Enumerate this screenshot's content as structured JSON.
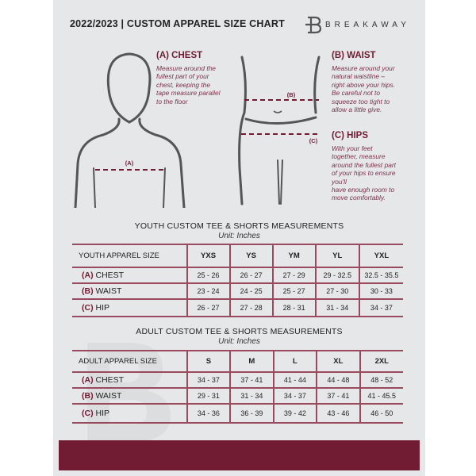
{
  "header": {
    "title": "2022/2023  |  CUSTOM APPAREL SIZE CHART",
    "brand": "BREAKAWAY"
  },
  "colors": {
    "accent": "#721c33",
    "background": "#e6e7e9"
  },
  "measures": {
    "chest": {
      "title": "(A) CHEST",
      "desc": [
        "Measure around the",
        "fullest part of your",
        "chest, keeping the",
        "tape measure parallel",
        "to the floor"
      ],
      "marker": "(A)"
    },
    "waist": {
      "title": "(B) WAIST",
      "desc": [
        "Measure around your",
        "natural waistline –",
        "right above your hips.",
        "Be careful not to",
        "squeeze too tight to",
        "allow a little give."
      ],
      "marker": "(B)"
    },
    "hips": {
      "title": "(C) HIPS",
      "desc": [
        "With your feet",
        "together, measure",
        "around the fullest part",
        "of your hips to ensure",
        "you'll",
        "have enough room to",
        "move comfortably."
      ],
      "marker": "(C)"
    }
  },
  "youth": {
    "title": "YOUTH CUSTOM TEE & SHORTS MEASUREMENTS",
    "unit": "Unit: Inches",
    "header": "YOUTH APPAREL SIZE",
    "sizes": [
      "YXS",
      "YS",
      "YM",
      "YL",
      "YXL"
    ],
    "rows": [
      {
        "letter": "(A)",
        "name": "CHEST",
        "values": [
          "25 - 26",
          "26 - 27",
          "27 - 29",
          "29 - 32.5",
          "32.5 - 35.5"
        ]
      },
      {
        "letter": "(B)",
        "name": "WAIST",
        "values": [
          "23 - 24",
          "24 - 25",
          "25 - 27",
          "27 - 30",
          "30 - 33"
        ]
      },
      {
        "letter": "(C)",
        "name": "HIP",
        "values": [
          "26 - 27",
          "27 - 28",
          "28 - 31",
          "31 - 34",
          "34 - 37"
        ]
      }
    ]
  },
  "adult": {
    "title": "ADULT CUSTOM TEE & SHORTS MEASUREMENTS",
    "unit": "Unit: Inches",
    "header": "ADULT APPAREL SIZE",
    "sizes": [
      "S",
      "M",
      "L",
      "XL",
      "2XL"
    ],
    "rows": [
      {
        "letter": "(A)",
        "name": "CHEST",
        "values": [
          "34 - 37",
          "37 - 41",
          "41 - 44",
          "44 - 48",
          "48 - 52"
        ]
      },
      {
        "letter": "(B)",
        "name": "WAIST",
        "values": [
          "29 - 31",
          "31 - 34",
          "34 - 37",
          "37 - 41",
          "41 - 45.5"
        ]
      },
      {
        "letter": "(C)",
        "name": "HIP",
        "values": [
          "34 - 36",
          "36 - 39",
          "39 - 42",
          "43 - 46",
          "46 - 50"
        ]
      }
    ]
  }
}
